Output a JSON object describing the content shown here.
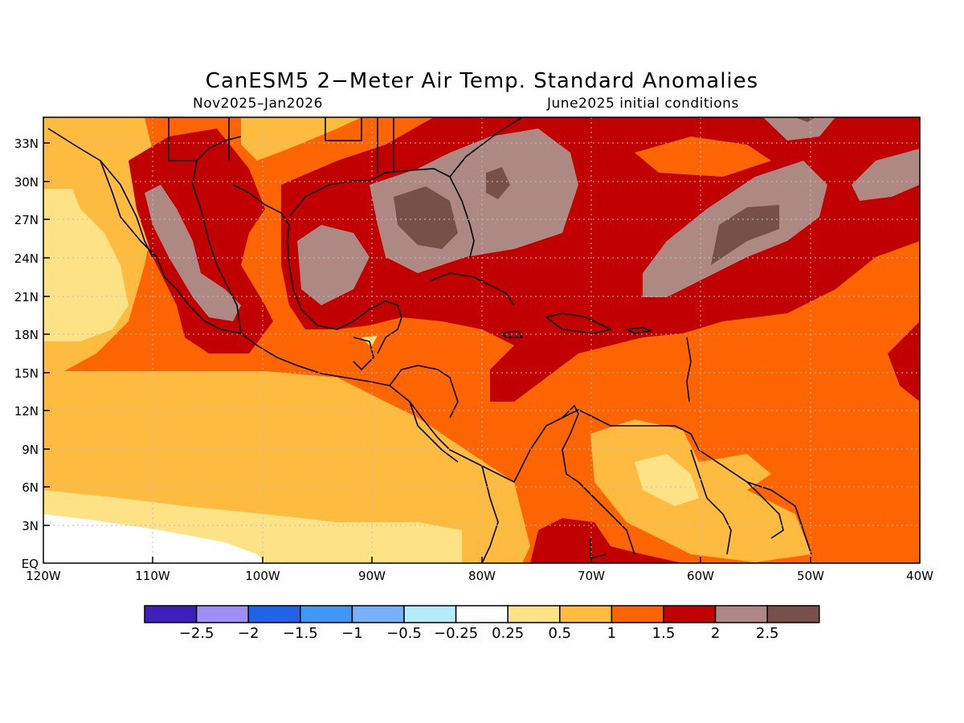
{
  "title": "CanESM5 2−Meter Air Temp. Standard Anomalies",
  "subtitle_left": "Nov2025–Jan2026",
  "subtitle_right": "June2025 initial conditions",
  "map": {
    "lat_labels": [
      "33N",
      "30N",
      "27N",
      "24N",
      "21N",
      "18N",
      "15N",
      "12N",
      "9N",
      "6N",
      "3N",
      "EQ"
    ],
    "lon_labels": [
      "120W",
      "110W",
      "100W",
      "90W",
      "80W",
      "70W",
      "60W",
      "50W",
      "40W"
    ],
    "extent": {
      "lon": [
        -120,
        -40
      ],
      "lat": [
        0,
        34.5
      ]
    }
  },
  "colorbar": {
    "colors": [
      "#3f1fb9",
      "#9f8ff5",
      "#1f63e6",
      "#3f97f6",
      "#76b0f6",
      "#b6ebfb",
      "#ffffff",
      "#fee386",
      "#fdbb3f",
      "#fd6503",
      "#c10002",
      "#ae8882",
      "#775148"
    ],
    "labels": [
      "−2.5",
      "−2",
      "−1.5",
      "−1",
      "−0.5",
      "−0.25",
      "0.25",
      "0.5",
      "1",
      "1.5",
      "2",
      "2.5"
    ]
  },
  "fields": {
    "color_05_1": "#fee386",
    "color_1_15": "#fdbb3f",
    "color_15_2": "#fd6503",
    "color_2_25": "#c10002",
    "color_25_3": "#ae8882",
    "color_gt3": "#775148"
  }
}
